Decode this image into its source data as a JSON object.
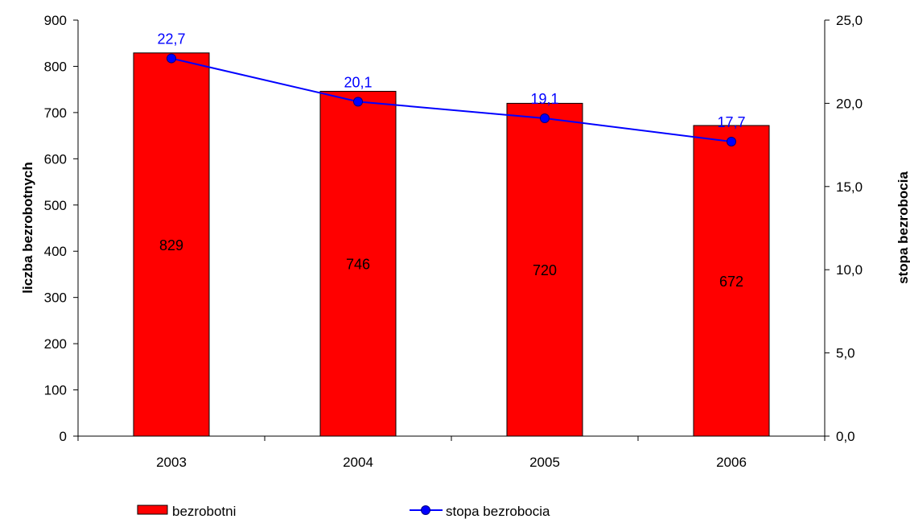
{
  "chart_data": {
    "type": "bar",
    "categories": [
      "2003",
      "2004",
      "2005",
      "2006"
    ],
    "series": [
      {
        "name": "bezrobotni",
        "type": "bar",
        "axis": "left",
        "values": [
          829,
          746,
          720,
          672
        ],
        "labels": [
          "829",
          "746",
          "720",
          "672"
        ],
        "color": "#ff0000"
      },
      {
        "name": "stopa bezrobocia",
        "type": "line",
        "axis": "right",
        "values": [
          22.7,
          20.1,
          19.1,
          17.7
        ],
        "labels": [
          "22,7",
          "20,1",
          "19,1",
          "17,7"
        ],
        "color": "#0000ff"
      }
    ],
    "y_left": {
      "label": "liczba bezrobotnych",
      "ylim": [
        0,
        900
      ],
      "ticks": [
        0,
        100,
        200,
        300,
        400,
        500,
        600,
        700,
        800,
        900
      ],
      "tick_labels": [
        "0",
        "100",
        "200",
        "300",
        "400",
        "500",
        "600",
        "700",
        "800",
        "900"
      ]
    },
    "y_right": {
      "label": "stopa bezrobocia",
      "ylim": [
        0,
        25
      ],
      "ticks": [
        0,
        5,
        10,
        15,
        20,
        25
      ],
      "tick_labels": [
        "0,0",
        "5,0",
        "10,0",
        "15,0",
        "20,0",
        "25,0"
      ]
    },
    "grid": false,
    "legend": {
      "position": "bottom",
      "entries": [
        "bezrobotni",
        "stopa bezrobocia"
      ]
    }
  }
}
